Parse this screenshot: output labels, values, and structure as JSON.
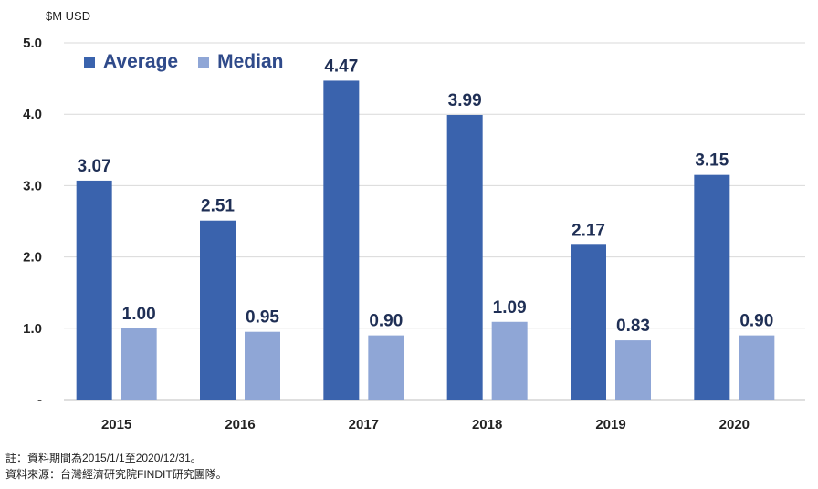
{
  "chart_data": {
    "type": "bar",
    "unit_label": "$M USD",
    "categories": [
      "2015",
      "2016",
      "2017",
      "2018",
      "2019",
      "2020"
    ],
    "series": [
      {
        "name": "Average",
        "color": "#3a63ad",
        "values": [
          3.07,
          2.51,
          4.47,
          3.99,
          2.17,
          3.15
        ],
        "labels": [
          "3.07",
          "2.51",
          "4.47",
          "3.99",
          "2.17",
          "3.15"
        ]
      },
      {
        "name": "Median",
        "color": "#8fa6d6",
        "values": [
          1.0,
          0.95,
          0.9,
          1.09,
          0.83,
          0.9
        ],
        "labels": [
          "1.00",
          "0.95",
          "0.90",
          "1.09",
          "0.83",
          "0.90"
        ]
      }
    ],
    "ylim": [
      0,
      5
    ],
    "yticks": [
      "-",
      "1.0",
      "2.0",
      "3.0",
      "4.0",
      "5.0"
    ],
    "grid": true,
    "legend": "top-left"
  },
  "notes": {
    "line1": "註：資料期間為2015/1/1至2020/12/31。",
    "line2": "資料來源：台灣經濟研究院FINDIT研究團隊。"
  }
}
